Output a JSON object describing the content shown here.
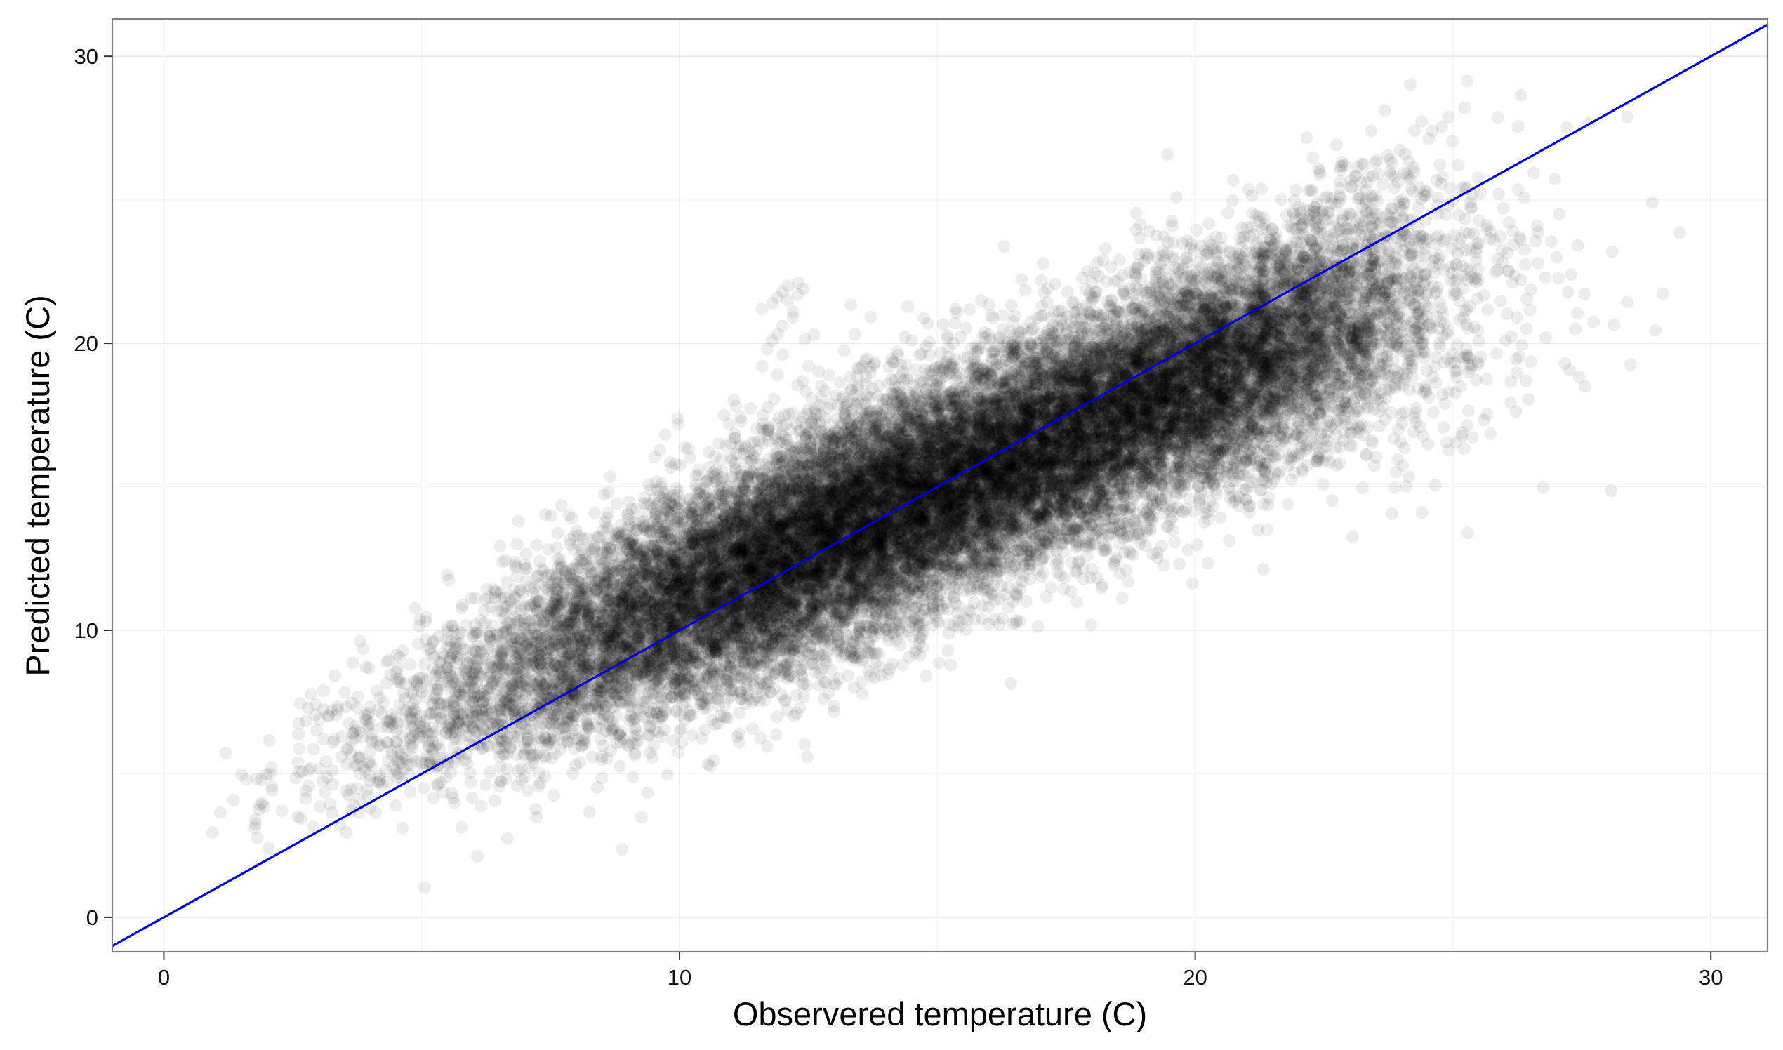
{
  "chart_data": {
    "type": "scatter",
    "title": "",
    "xlabel": "Observered temperature (C)",
    "ylabel": "Predicted temperature (C)",
    "xlim": [
      -1.0,
      31.1
    ],
    "ylim": [
      -1.2,
      31.3
    ],
    "x_ticks": [
      0,
      10,
      20,
      30
    ],
    "y_ticks": [
      0,
      10,
      20,
      30
    ],
    "x_tick_labels": [
      "0",
      "10",
      "20",
      "30"
    ],
    "y_tick_labels": [
      "0",
      "10",
      "20",
      "30"
    ],
    "grid": true,
    "legend": "none",
    "point_color": "#000000",
    "point_alpha": 0.07,
    "series": [
      {
        "density_profile": {
          "x": [
            1,
            2,
            3,
            4,
            5,
            6,
            7,
            8,
            9,
            10,
            11,
            12,
            13,
            14,
            15,
            16,
            17,
            18,
            19,
            20,
            21,
            22,
            23,
            24,
            25,
            26,
            27,
            28,
            29
          ],
          "y_mean": [
            3.5,
            4.5,
            5.3,
            6.2,
            7.0,
            7.8,
            8.6,
            9.4,
            10.2,
            11.0,
            11.8,
            12.6,
            13.4,
            14.1,
            14.9,
            15.7,
            16.4,
            17.2,
            18.0,
            18.7,
            19.5,
            20.2,
            20.9,
            21.5,
            21.7,
            21.8,
            21.9,
            21.9,
            21.8
          ],
          "y_spread": [
            1.1,
            1.2,
            1.3,
            1.4,
            1.5,
            1.6,
            1.7,
            1.8,
            1.9,
            1.9,
            2.0,
            2.0,
            2.0,
            2.0,
            2.0,
            2.0,
            2.0,
            2.0,
            2.0,
            2.0,
            2.0,
            2.1,
            2.2,
            2.4,
            2.7,
            3.0,
            3.3,
            3.5,
            3.6
          ],
          "relative_count": [
            0.002,
            0.01,
            0.025,
            0.05,
            0.09,
            0.15,
            0.25,
            0.38,
            0.52,
            0.68,
            0.82,
            0.93,
            1.0,
            1.0,
            0.97,
            0.93,
            0.9,
            0.88,
            0.85,
            0.8,
            0.7,
            0.55,
            0.38,
            0.2,
            0.08,
            0.03,
            0.012,
            0.005,
            0.002
          ]
        }
      },
      {
        "x": [
          11.6,
          11.8,
          11.9,
          12.0,
          12.1,
          12.3,
          12.4,
          11.7,
          11.9,
          12.2,
          12.0,
          11.8,
          11.6,
          12.2,
          12.3,
          12.1,
          11.9,
          12.0
        ],
        "y": [
          21.2,
          21.4,
          21.6,
          21.8,
          22.0,
          21.7,
          21.9,
          19.8,
          20.3,
          20.9,
          20.6,
          20.1,
          19.2,
          21.1,
          22.1,
          21.5,
          18.9,
          19.6
        ]
      },
      {
        "name": "y = x",
        "x": [
          -1.0,
          31.1
        ],
        "y": [
          -1.0,
          31.1
        ],
        "color": "#0000dd"
      }
    ]
  }
}
